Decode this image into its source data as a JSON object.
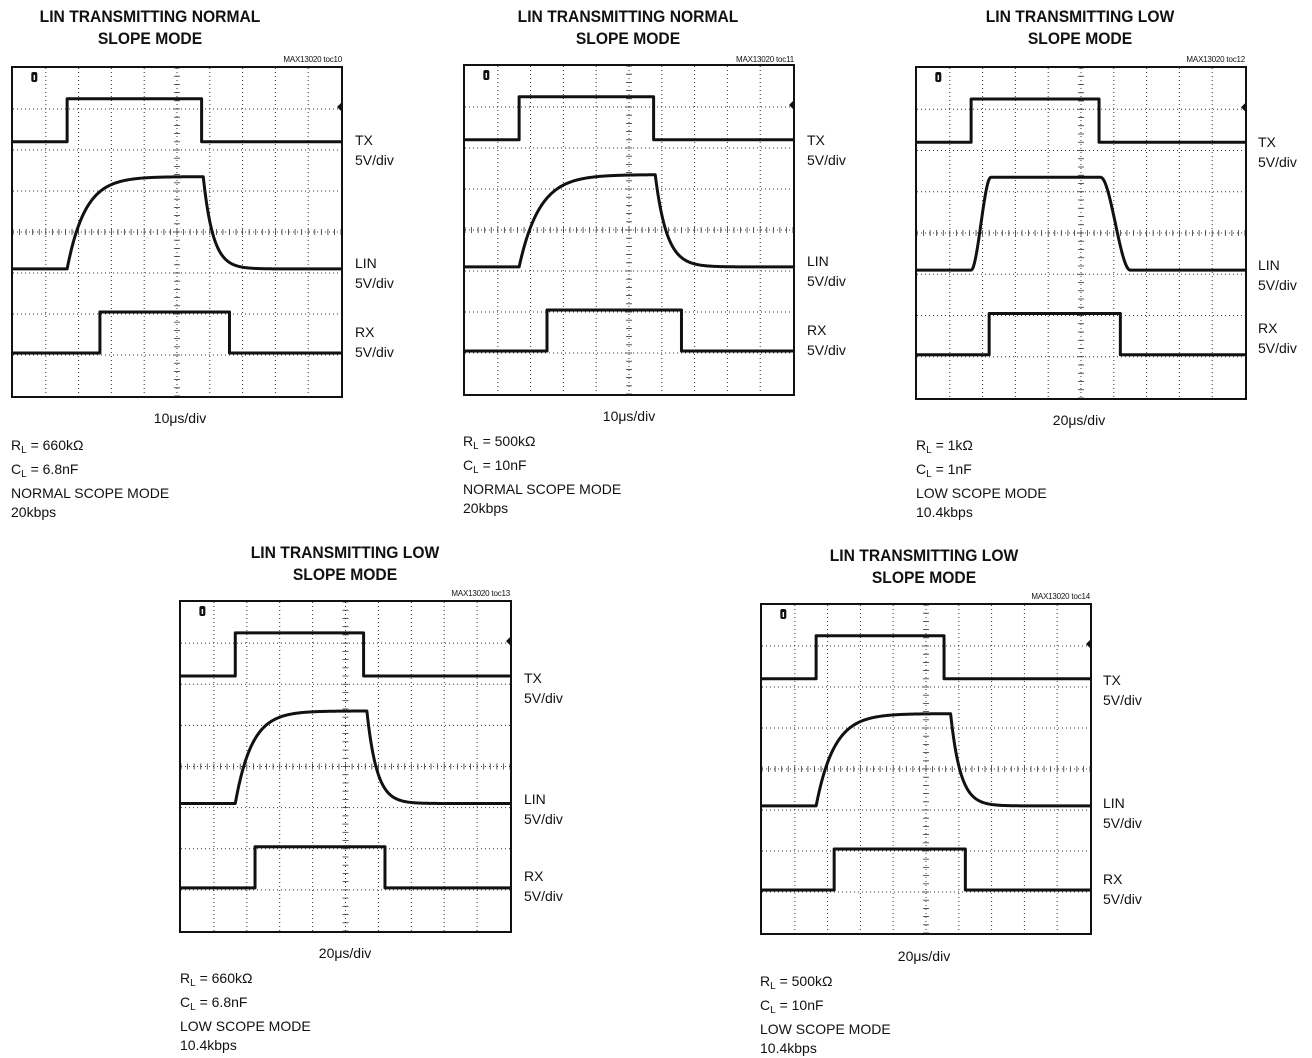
{
  "panels": [
    {
      "title_line1": "LIN TRANSMITTING NORMAL",
      "title_line2": "SLOPE MODE",
      "fig_id": "MAX13020 toc10",
      "channels": [
        {
          "name": "TX",
          "scale": "5V/div"
        },
        {
          "name": "LIN",
          "scale": "5V/div"
        },
        {
          "name": "RX",
          "scale": "5V/div"
        }
      ],
      "time_div": "10μs/div",
      "conditions": {
        "rl_label": "R",
        "rl_sub": "L",
        "rl_value": " = 660kΩ",
        "cl_label": "C",
        "cl_sub": "L",
        "cl_value": " = 6.8nF",
        "mode": "NORMAL SCOPE MODE",
        "rate": "20kbps"
      }
    },
    {
      "title_line1": "LIN TRANSMITTING NORMAL",
      "title_line2": "SLOPE MODE",
      "fig_id": "MAX13020 toc11",
      "channels": [
        {
          "name": "TX",
          "scale": "5V/div"
        },
        {
          "name": "LIN",
          "scale": "5V/div"
        },
        {
          "name": "RX",
          "scale": "5V/div"
        }
      ],
      "time_div": "10μs/div",
      "conditions": {
        "rl_label": "R",
        "rl_sub": "L",
        "rl_value": " = 500kΩ",
        "cl_label": "C",
        "cl_sub": "L",
        "cl_value": " = 10nF",
        "mode": "NORMAL SCOPE MODE",
        "rate": "20kbps"
      }
    },
    {
      "title_line1": "LIN TRANSMITTING LOW",
      "title_line2": "SLOPE MODE",
      "fig_id": "MAX13020 toc12",
      "channels": [
        {
          "name": "TX",
          "scale": "5V/div"
        },
        {
          "name": "LIN",
          "scale": "5V/div"
        },
        {
          "name": "RX",
          "scale": "5V/div"
        }
      ],
      "time_div": "20μs/div",
      "conditions": {
        "rl_label": "R",
        "rl_sub": "L",
        "rl_value": " = 1kΩ",
        "cl_label": "C",
        "cl_sub": "L",
        "cl_value": " = 1nF",
        "mode": "LOW SCOPE MODE",
        "rate": "10.4kbps"
      }
    },
    {
      "title_line1": "LIN TRANSMITTING LOW",
      "title_line2": "SLOPE MODE",
      "fig_id": "MAX13020 toc13",
      "channels": [
        {
          "name": "TX",
          "scale": "5V/div"
        },
        {
          "name": "LIN",
          "scale": "5V/div"
        },
        {
          "name": "RX",
          "scale": "5V/div"
        }
      ],
      "time_div": "20μs/div",
      "conditions": {
        "rl_label": "R",
        "rl_sub": "L",
        "rl_value": " = 660kΩ",
        "cl_label": "C",
        "cl_sub": "L",
        "cl_value": " = 6.8nF",
        "mode": "LOW SCOPE MODE",
        "rate": "10.4kbps"
      }
    },
    {
      "title_line1": "LIN TRANSMITTING LOW",
      "title_line2": "SLOPE MODE",
      "fig_id": "MAX13020 toc14",
      "channels": [
        {
          "name": "TX",
          "scale": "5V/div"
        },
        {
          "name": "LIN",
          "scale": "5V/div"
        },
        {
          "name": "RX",
          "scale": "5V/div"
        }
      ],
      "time_div": "20μs/div",
      "conditions": {
        "rl_label": "R",
        "rl_sub": "L",
        "rl_value": " = 500kΩ",
        "cl_label": "C",
        "cl_sub": "L",
        "cl_value": " = 10nF",
        "mode": "LOW SCOPE MODE",
        "rate": "10.4kbps"
      }
    }
  ],
  "chart_data": [
    {
      "type": "line",
      "title": "LIN TRANSMITTING NORMAL SLOPE MODE",
      "x_units": "divisions (10μs/div)",
      "y_units": "divisions (5V/div)",
      "xlim": [
        0,
        10
      ],
      "ylim": [
        0,
        8
      ],
      "grid": true,
      "series": [
        {
          "name": "TX",
          "shape": "pulse",
          "low": 6.2,
          "high": 7.25,
          "rise_x": 1.65,
          "fall_x": 5.75
        },
        {
          "name": "LIN",
          "shape": "exp_pulse",
          "low": 3.1,
          "high": 5.35,
          "rise_x": 1.65,
          "fall_x": 5.8,
          "rise_tau": 0.55,
          "fall_tau": 0.3
        },
        {
          "name": "RX",
          "shape": "pulse",
          "low": 1.05,
          "high": 2.05,
          "rise_x": 2.65,
          "fall_x": 6.6
        }
      ]
    },
    {
      "type": "line",
      "title": "LIN TRANSMITTING NORMAL SLOPE MODE",
      "x_units": "divisions (10μs/div)",
      "y_units": "divisions (5V/div)",
      "xlim": [
        0,
        10
      ],
      "ylim": [
        0,
        8
      ],
      "grid": true,
      "series": [
        {
          "name": "TX",
          "shape": "pulse",
          "low": 6.2,
          "high": 7.25,
          "rise_x": 1.65,
          "fall_x": 5.75
        },
        {
          "name": "LIN",
          "shape": "exp_pulse",
          "low": 3.1,
          "high": 5.35,
          "rise_x": 1.65,
          "fall_x": 5.8,
          "rise_tau": 0.62,
          "fall_tau": 0.35
        },
        {
          "name": "RX",
          "shape": "pulse",
          "low": 1.05,
          "high": 2.05,
          "rise_x": 2.5,
          "fall_x": 6.6
        }
      ]
    },
    {
      "type": "line",
      "title": "LIN TRANSMITTING LOW SLOPE MODE",
      "x_units": "divisions (20μs/div)",
      "y_units": "divisions (5V/div)",
      "xlim": [
        0,
        10
      ],
      "ylim": [
        0,
        8
      ],
      "grid": true,
      "series": [
        {
          "name": "TX",
          "shape": "pulse",
          "low": 6.2,
          "high": 7.25,
          "rise_x": 1.65,
          "fall_x": 5.55
        },
        {
          "name": "LIN",
          "shape": "slew_pulse",
          "low": 3.1,
          "high": 5.35,
          "rise_x": 1.65,
          "fall_x": 5.6,
          "rise_time": 0.6,
          "fall_time": 0.9
        },
        {
          "name": "RX",
          "shape": "pulse",
          "low": 1.05,
          "high": 2.05,
          "rise_x": 2.2,
          "fall_x": 6.2
        }
      ]
    },
    {
      "type": "line",
      "title": "LIN TRANSMITTING LOW SLOPE MODE",
      "x_units": "divisions (20μs/div)",
      "y_units": "divisions (5V/div)",
      "xlim": [
        0,
        10
      ],
      "ylim": [
        0,
        8
      ],
      "grid": true,
      "series": [
        {
          "name": "TX",
          "shape": "pulse",
          "low": 6.2,
          "high": 7.25,
          "rise_x": 1.65,
          "fall_x": 5.55
        },
        {
          "name": "LIN",
          "shape": "exp_pulse",
          "low": 3.1,
          "high": 5.35,
          "rise_x": 1.65,
          "fall_x": 5.65,
          "rise_tau": 0.5,
          "fall_tau": 0.3
        },
        {
          "name": "RX",
          "shape": "pulse",
          "low": 1.05,
          "high": 2.05,
          "rise_x": 2.25,
          "fall_x": 6.2
        }
      ]
    },
    {
      "type": "line",
      "title": "LIN TRANSMITTING LOW SLOPE MODE",
      "x_units": "divisions (20μs/div)",
      "y_units": "divisions (5V/div)",
      "xlim": [
        0,
        10
      ],
      "ylim": [
        0,
        8
      ],
      "grid": true,
      "series": [
        {
          "name": "TX",
          "shape": "pulse",
          "low": 6.2,
          "high": 7.25,
          "rise_x": 1.65,
          "fall_x": 5.55
        },
        {
          "name": "LIN",
          "shape": "exp_pulse",
          "low": 3.1,
          "high": 5.35,
          "rise_x": 1.65,
          "fall_x": 5.75,
          "rise_tau": 0.55,
          "fall_tau": 0.3
        },
        {
          "name": "RX",
          "shape": "pulse",
          "low": 1.05,
          "high": 2.05,
          "rise_x": 2.2,
          "fall_x": 6.2
        }
      ]
    }
  ]
}
